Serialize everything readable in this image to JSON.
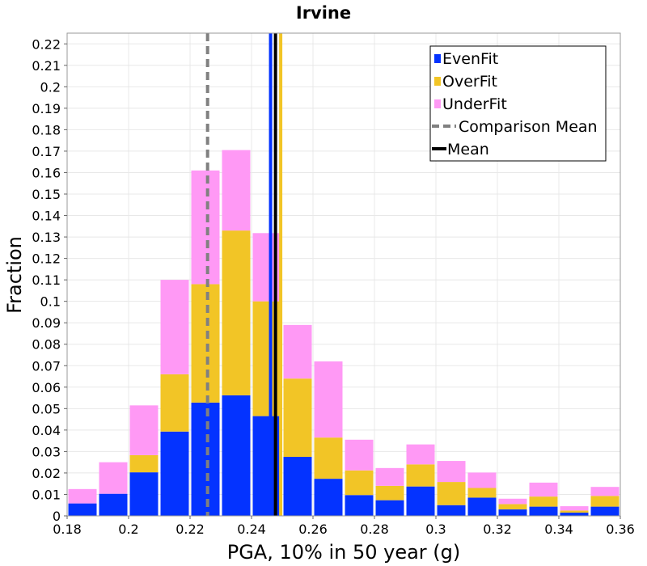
{
  "chart_data": {
    "type": "bar",
    "stacked": true,
    "title": "Irvine",
    "xlabel": "PGA, 10% in 50 year (g)",
    "ylabel": "Fraction",
    "xlim": [
      0.18,
      0.36
    ],
    "ylim": [
      0,
      0.225
    ],
    "x_ticks": [
      "0.18",
      "0.2",
      "0.22",
      "0.24",
      "0.26",
      "0.28",
      "0.3",
      "0.32",
      "0.34",
      "0.36"
    ],
    "y_ticks": [
      "0",
      "0.01",
      "0.02",
      "0.03",
      "0.04",
      "0.05",
      "0.06",
      "0.07",
      "0.08",
      "0.09",
      "0.1",
      "0.11",
      "0.12",
      "0.13",
      "0.14",
      "0.15",
      "0.16",
      "0.17",
      "0.18",
      "0.19",
      "0.2",
      "0.21",
      "0.22"
    ],
    "bin_width": 0.01,
    "x": [
      0.185,
      0.195,
      0.205,
      0.215,
      0.225,
      0.235,
      0.245,
      0.255,
      0.265,
      0.275,
      0.285,
      0.295,
      0.305,
      0.315,
      0.325,
      0.335,
      0.345,
      0.355
    ],
    "series": [
      {
        "name": "EvenFit",
        "color": "#0433ff",
        "values": [
          0.0058,
          0.0103,
          0.0203,
          0.0393,
          0.0528,
          0.0562,
          0.0465,
          0.0275,
          0.0173,
          0.0097,
          0.0073,
          0.0137,
          0.005,
          0.0085,
          0.003,
          0.0043,
          0.0015,
          0.0043
        ]
      },
      {
        "name": "OverFit",
        "color": "#f2c526",
        "values": [
          0.0,
          0.0,
          0.008,
          0.0267,
          0.0552,
          0.0768,
          0.0535,
          0.0365,
          0.0192,
          0.0115,
          0.0067,
          0.0103,
          0.0108,
          0.0045,
          0.0025,
          0.0047,
          0.001,
          0.005
        ]
      },
      {
        "name": "UnderFit",
        "color": "#ff99f5",
        "values": [
          0.0067,
          0.0147,
          0.0232,
          0.044,
          0.053,
          0.0375,
          0.0318,
          0.025,
          0.0355,
          0.0143,
          0.0083,
          0.0093,
          0.0098,
          0.0072,
          0.0025,
          0.0065,
          0.002,
          0.0042
        ]
      }
    ],
    "lines": [
      {
        "name": "Comparison Mean",
        "x": 0.2257,
        "color": "#808080",
        "style": "dashed"
      },
      {
        "name": "Mean",
        "x": 0.2478,
        "color": "#000000",
        "style": "solid"
      },
      {
        "name": "EvenFit",
        "x": 0.2462,
        "color": "#0433ff",
        "style": "solid"
      },
      {
        "name": "OverFit",
        "x": 0.2495,
        "color": "#f2c526",
        "style": "solid"
      }
    ],
    "legend": {
      "placement": "top-right",
      "entries": [
        {
          "label": "EvenFit",
          "color": "#0433ff",
          "kind": "box"
        },
        {
          "label": "OverFit",
          "color": "#f2c526",
          "kind": "box"
        },
        {
          "label": "UnderFit",
          "color": "#ff99f5",
          "kind": "box"
        },
        {
          "label": "Comparison Mean",
          "color": "#808080",
          "kind": "dash"
        },
        {
          "label": "Mean",
          "color": "#000000",
          "kind": "line"
        }
      ]
    },
    "grid": true
  }
}
